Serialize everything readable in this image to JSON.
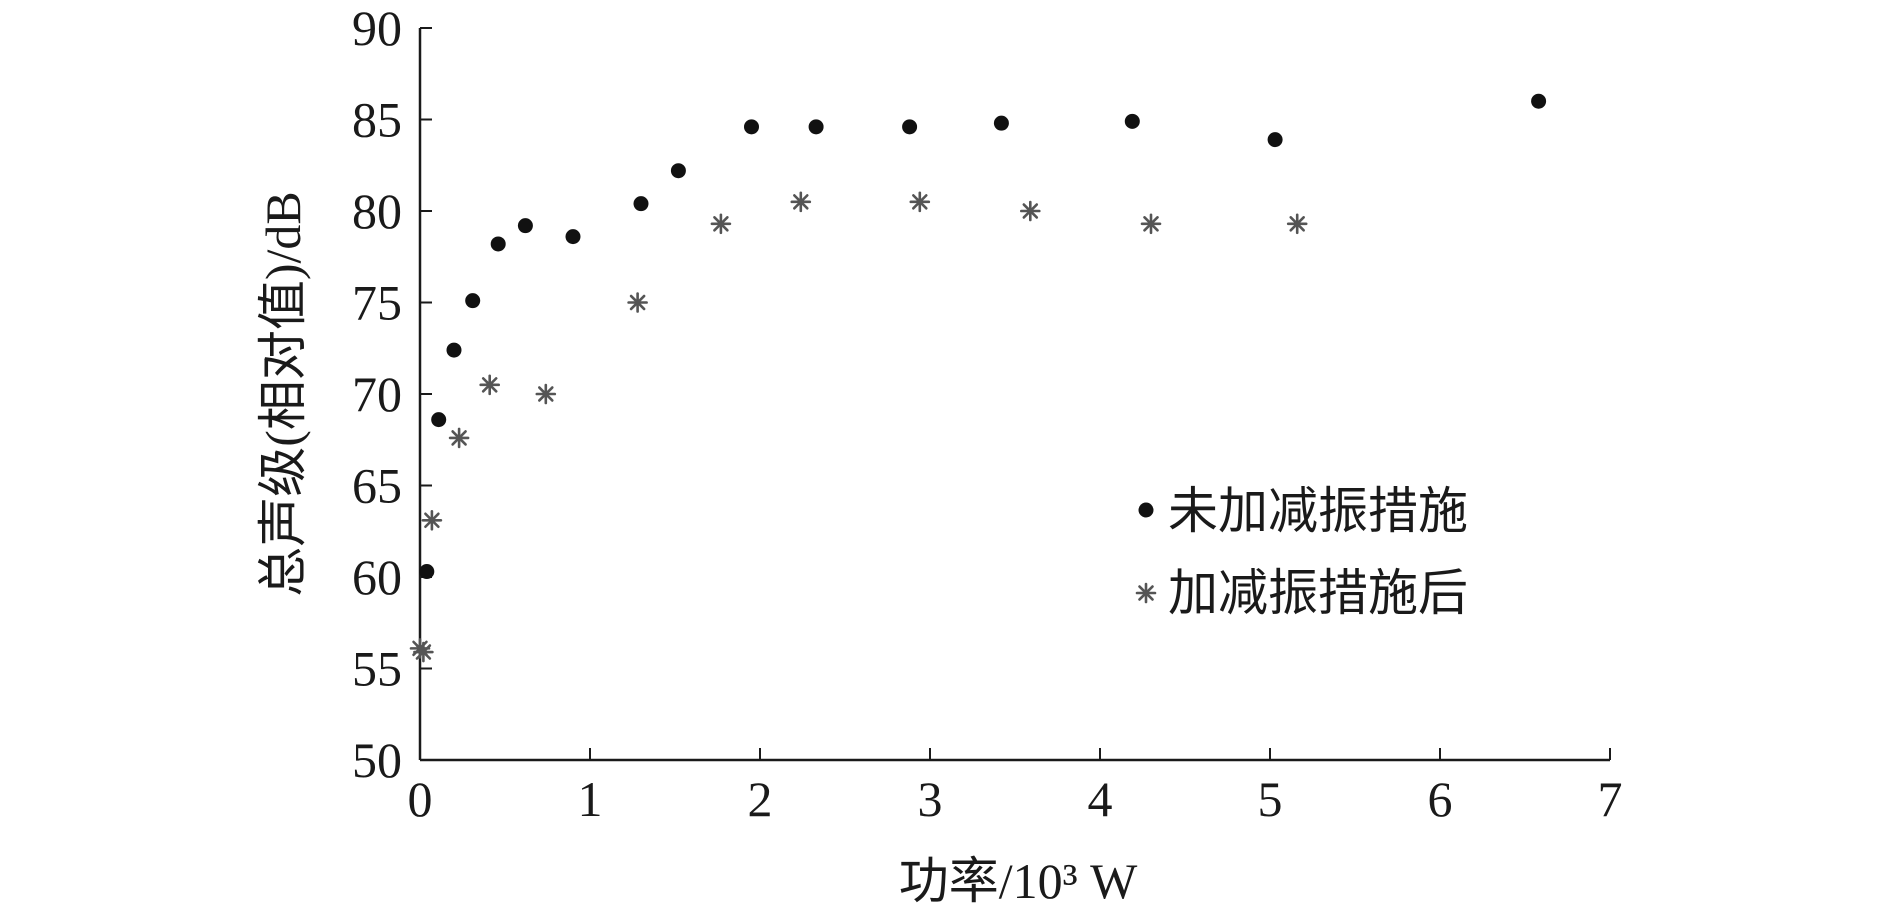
{
  "chart_data": {
    "type": "scatter",
    "xlabel": "功率/10³ W",
    "ylabel": "总声级(相对值)/dB",
    "xlim": [
      0,
      7
    ],
    "ylim": [
      50,
      90
    ],
    "x_ticks": [
      0,
      1,
      2,
      3,
      4,
      5,
      6,
      7
    ],
    "y_ticks": [
      50,
      55,
      60,
      65,
      70,
      75,
      80,
      85,
      90
    ],
    "grid": false,
    "legend_position": "right-middle",
    "series": [
      {
        "name": "未加减振措施",
        "marker": "dot",
        "color": "#111111",
        "points": [
          [
            0.04,
            60.3
          ],
          [
            0.11,
            68.6
          ],
          [
            0.2,
            72.4
          ],
          [
            0.31,
            75.1
          ],
          [
            0.46,
            78.2
          ],
          [
            0.62,
            79.2
          ],
          [
            0.9,
            78.6
          ],
          [
            1.3,
            80.4
          ],
          [
            1.52,
            82.2
          ],
          [
            1.95,
            84.6
          ],
          [
            2.33,
            84.6
          ],
          [
            2.88,
            84.6
          ],
          [
            3.42,
            84.8
          ],
          [
            4.19,
            84.9
          ],
          [
            5.03,
            83.9
          ],
          [
            6.58,
            86.0
          ]
        ]
      },
      {
        "name": "加减振措施后",
        "marker": "asterisk",
        "color": "#555555",
        "points": [
          [
            0.0,
            56.1
          ],
          [
            0.02,
            55.9
          ],
          [
            0.07,
            63.1
          ],
          [
            0.23,
            67.6
          ],
          [
            0.41,
            70.5
          ],
          [
            0.74,
            70.0
          ],
          [
            1.28,
            75.0
          ],
          [
            1.77,
            79.3
          ],
          [
            2.24,
            80.5
          ],
          [
            2.94,
            80.5
          ],
          [
            3.59,
            80.0
          ],
          [
            4.3,
            79.3
          ],
          [
            5.16,
            79.3
          ]
        ]
      }
    ]
  }
}
